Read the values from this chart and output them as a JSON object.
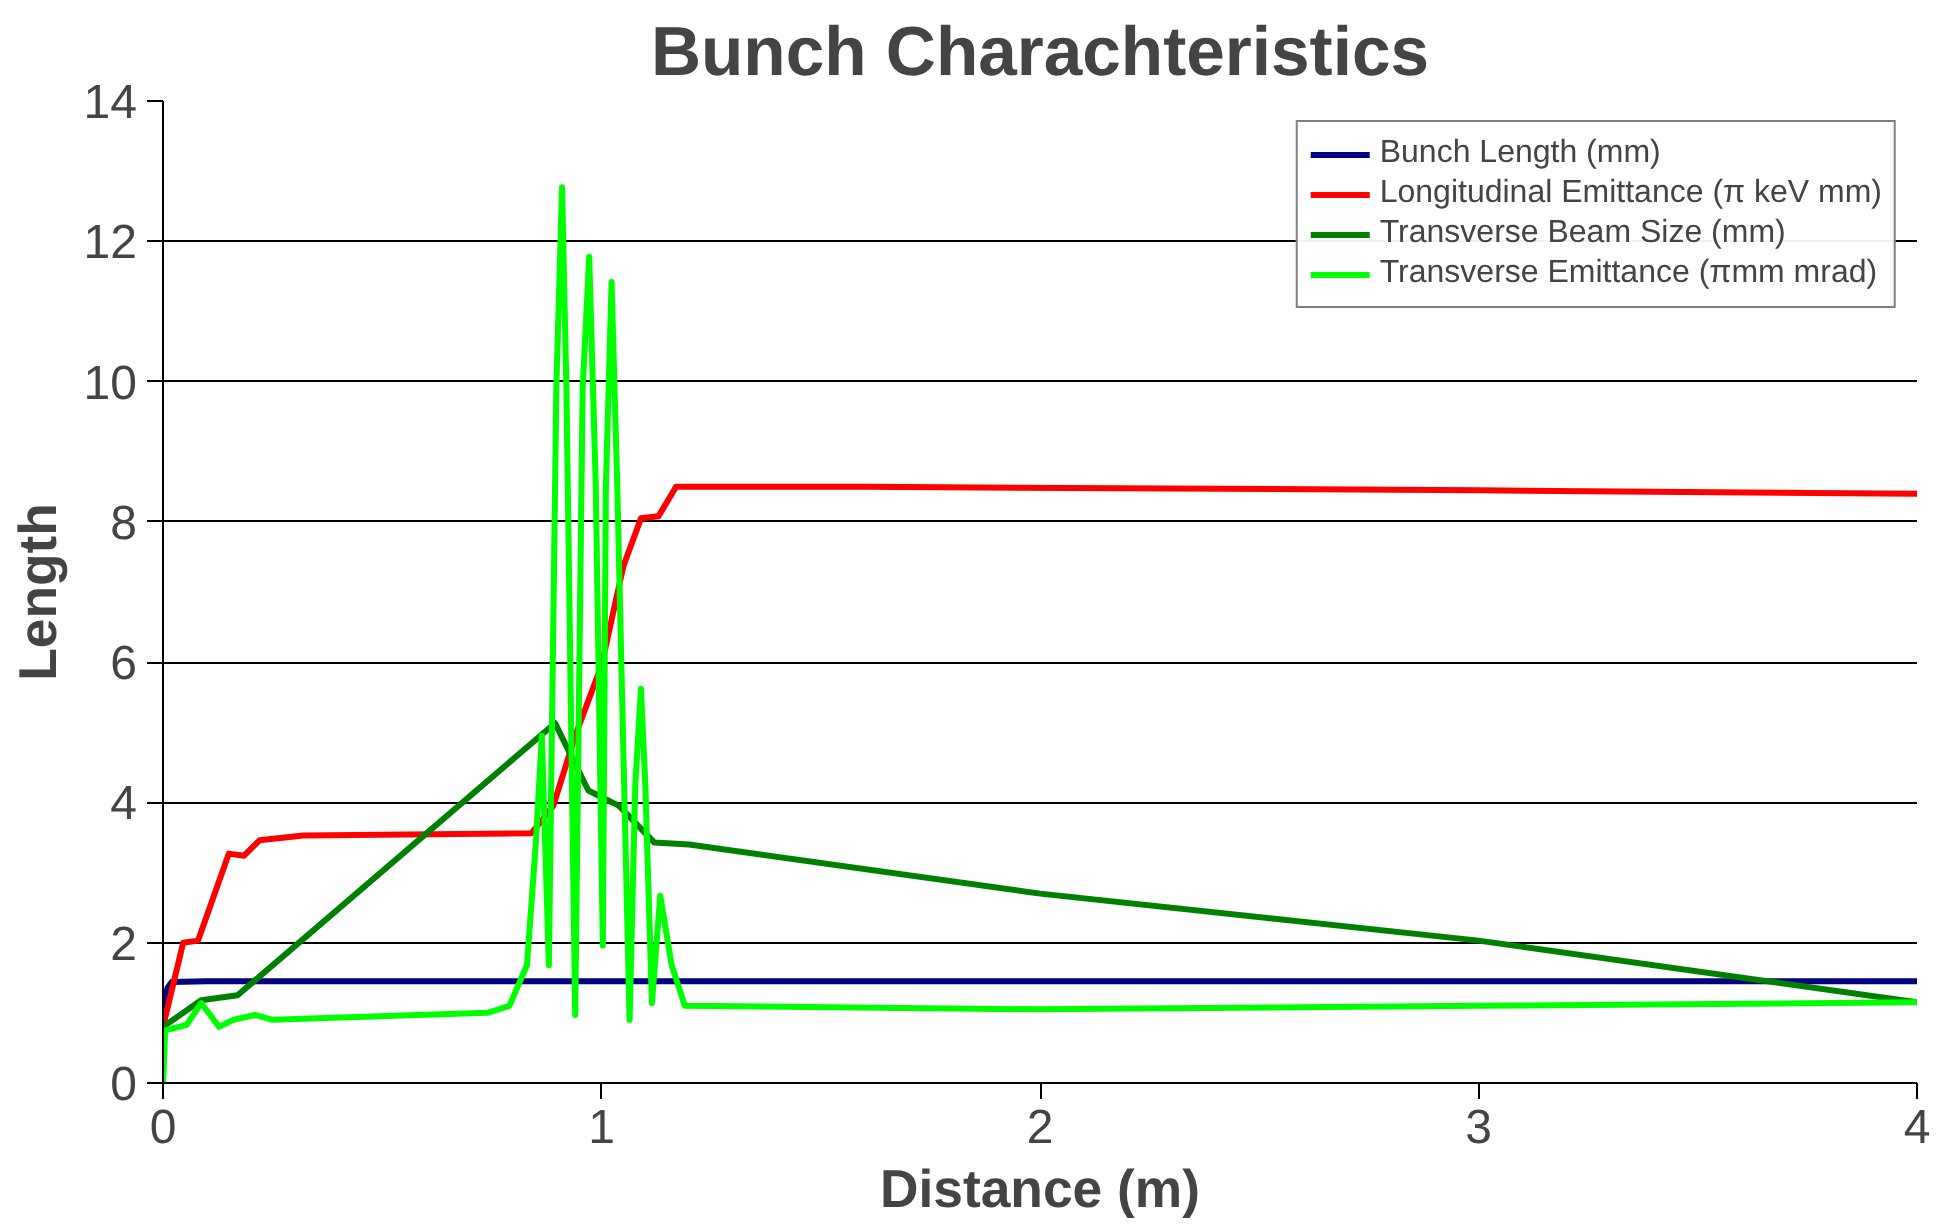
{
  "chart_data": {
    "type": "line",
    "title": "Bunch Charachteristics",
    "xlabel": "Distance (m)",
    "ylabel": "Length",
    "xlim": [
      0,
      4
    ],
    "ylim": [
      0,
      14
    ],
    "xticks": [
      0,
      1,
      2,
      3,
      4
    ],
    "yticks": [
      0,
      2,
      4,
      6,
      8,
      10,
      12,
      14
    ],
    "grid": "y",
    "legend": "top right",
    "marker": "none",
    "line_style": "solid",
    "series": [
      {
        "name": "Bunch Length (mm)",
        "color": "#000080",
        "x": [
          0,
          0.01,
          0.02,
          0.1,
          1.0,
          2.0,
          3.0,
          4.0
        ],
        "values": [
          1.0,
          1.35,
          1.44,
          1.45,
          1.45,
          1.45,
          1.45,
          1.45
        ]
      },
      {
        "name": "Longitudinal Emittance (π keV mm)",
        "color": "#ff0000",
        "x": [
          0,
          0.046,
          0.08,
          0.15,
          0.185,
          0.22,
          0.32,
          0.84,
          0.89,
          0.94,
          1.0,
          1.05,
          1.09,
          1.13,
          1.17,
          1.6,
          3.0,
          4.0
        ],
        "values": [
          0.8,
          2.0,
          2.03,
          3.27,
          3.24,
          3.46,
          3.53,
          3.56,
          3.95,
          4.95,
          5.95,
          7.37,
          8.05,
          8.08,
          8.5,
          8.5,
          8.45,
          8.4
        ]
      },
      {
        "name": "Transverse Beam Size (mm)",
        "color": "#008000",
        "x": [
          0,
          0.087,
          0.17,
          0.894,
          0.97,
          1.04,
          1.12,
          1.2,
          2.0,
          3.0,
          4.0
        ],
        "values": [
          0.8,
          1.18,
          1.25,
          5.13,
          4.17,
          3.95,
          3.43,
          3.4,
          2.7,
          2.03,
          1.15
        ]
      },
      {
        "name": "Transverse Emittance (πmm mrad)",
        "color": "#00ff00",
        "x": [
          0,
          0.005,
          0.054,
          0.087,
          0.128,
          0.16,
          0.21,
          0.25,
          0.58,
          0.74,
          0.79,
          0.83,
          0.85,
          0.864,
          0.88,
          0.897,
          0.91,
          0.92,
          0.94,
          0.957,
          0.972,
          0.987,
          1.003,
          1.01,
          1.023,
          1.036,
          1.064,
          1.077,
          1.09,
          1.1,
          1.115,
          1.134,
          1.16,
          1.19,
          2.0,
          3.0,
          4.0
        ],
        "values": [
          0.0,
          0.75,
          0.83,
          1.14,
          0.8,
          0.9,
          0.97,
          0.9,
          0.97,
          1.0,
          1.1,
          1.68,
          3.4,
          4.95,
          1.68,
          9.9,
          12.77,
          9.9,
          0.97,
          9.9,
          11.78,
          8.5,
          1.96,
          8.5,
          11.42,
          8.5,
          0.9,
          4.24,
          5.62,
          4.24,
          1.14,
          2.67,
          1.68,
          1.1,
          1.05,
          1.1,
          1.15
        ]
      }
    ]
  }
}
